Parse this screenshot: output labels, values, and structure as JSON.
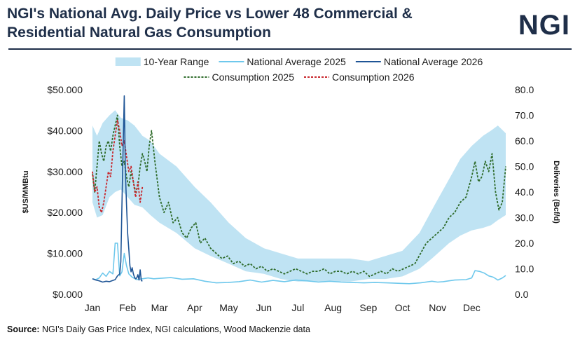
{
  "header": {
    "title_line1": "NGI's National Avg. Daily Price vs Lower 48 Commercial &",
    "title_line2": "Residential Natural Gas Consumption",
    "logo_text": "NGI"
  },
  "footer": {
    "source_label": "Source:",
    "source_text": "NGI's Daily Gas Price Index, NGI calculations, Wood Mackenzie data"
  },
  "colors": {
    "range": "#bfe3f3",
    "avg2025": "#6ec8ec",
    "avg2026": "#1f5596",
    "cons2025": "#2e6b2a",
    "cons2026": "#c8262c",
    "title": "#1f2f49"
  },
  "chart_data": {
    "type": "line",
    "x_unit": "day of year",
    "x_ticks": [
      {
        "label": "Jan",
        "day": 1
      },
      {
        "label": "Feb",
        "day": 32
      },
      {
        "label": "Mar",
        "day": 60
      },
      {
        "label": "Apr",
        "day": 91
      },
      {
        "label": "May",
        "day": 121
      },
      {
        "label": "Jun",
        "day": 152
      },
      {
        "label": "Jul",
        "day": 182
      },
      {
        "label": "Aug",
        "day": 213
      },
      {
        "label": "Sep",
        "day": 244
      },
      {
        "label": "Oct",
        "day": 274
      },
      {
        "label": "Nov",
        "day": 305
      },
      {
        "label": "Dec",
        "day": 335
      }
    ],
    "xlim": [
      1,
      365
    ],
    "y_left": {
      "label": "$US/MMBtu",
      "lim": [
        0,
        50
      ],
      "ticks": [
        0,
        10,
        20,
        30,
        40,
        50
      ],
      "tick_labels": [
        "$0.000",
        "$10.000",
        "$20.000",
        "$30.000",
        "$40.000",
        "$50.000"
      ]
    },
    "y_right": {
      "label": "Deliveries (Bcf/d)",
      "lim": [
        0,
        80
      ],
      "ticks": [
        0,
        10,
        20,
        30,
        40,
        50,
        60,
        70,
        80
      ],
      "tick_labels": [
        "0.0",
        "10.0",
        "20.0",
        "30.0",
        "40.0",
        "50.0",
        "60.0",
        "70.0",
        "80.0"
      ]
    },
    "legend": {
      "placement": "top",
      "items": [
        {
          "label": "10-Year Range",
          "style": "band",
          "color": "#bfe3f3"
        },
        {
          "label": "National Average 2025",
          "style": "line",
          "color": "#6ec8ec"
        },
        {
          "label": "National Average 2026",
          "style": "line",
          "color": "#1f5596"
        },
        {
          "label": "Consumption 2025",
          "style": "dash",
          "color": "#2e6b2a"
        },
        {
          "label": "Consumption 2026",
          "style": "dash",
          "color": "#c8262c"
        }
      ]
    },
    "series": [
      {
        "name": "10-Year Range",
        "axis": "right",
        "kind": "band",
        "x": [
          1,
          5,
          10,
          16,
          21,
          26,
          32,
          38,
          45,
          52,
          60,
          75,
          91,
          105,
          121,
          136,
          152,
          167,
          182,
          198,
          213,
          228,
          244,
          259,
          274,
          289,
          300,
          305,
          315,
          325,
          335,
          345,
          352,
          358,
          365
        ],
        "low": [
          36,
          30,
          31,
          38,
          40,
          41,
          38,
          35,
          34,
          31,
          28,
          24,
          18,
          15,
          12,
          9,
          8,
          6,
          5,
          5,
          5,
          5,
          6,
          6,
          7,
          10,
          14,
          16,
          20,
          23,
          25,
          26,
          27,
          29,
          31
        ],
        "high": [
          66,
          62,
          67,
          70,
          72,
          69,
          68,
          66,
          62,
          60,
          55,
          50,
          42,
          36,
          28,
          22,
          18,
          16,
          14,
          14,
          14,
          14,
          13,
          15,
          17,
          24,
          33,
          37,
          45,
          53,
          58,
          62,
          64,
          66,
          63
        ]
      },
      {
        "name": "National Average 2025",
        "axis": "left",
        "kind": "line",
        "x": [
          1,
          4,
          7,
          10,
          13,
          16,
          19,
          21,
          23,
          25,
          27,
          29,
          31,
          33,
          36,
          40,
          45,
          50,
          55,
          60,
          70,
          80,
          90,
          100,
          110,
          120,
          130,
          140,
          150,
          160,
          170,
          180,
          190,
          200,
          210,
          220,
          230,
          240,
          250,
          260,
          270,
          280,
          290,
          300,
          305,
          310,
          320,
          330,
          335,
          338,
          342,
          346,
          350,
          354,
          358,
          362,
          365
        ],
        "y": [
          3.8,
          3.6,
          4.0,
          5.2,
          4.4,
          5.6,
          5.0,
          12.5,
          12.5,
          4.5,
          5.5,
          10.0,
          7.0,
          5.0,
          4.2,
          3.6,
          3.8,
          4.0,
          3.8,
          3.9,
          4.1,
          3.7,
          3.8,
          3.2,
          2.8,
          2.9,
          3.1,
          3.5,
          3.0,
          3.4,
          3.1,
          3.5,
          3.3,
          3.0,
          3.2,
          3.0,
          2.9,
          2.8,
          2.9,
          2.8,
          2.7,
          2.6,
          2.8,
          3.2,
          3.0,
          3.1,
          3.5,
          3.6,
          4.0,
          5.8,
          5.6,
          5.2,
          4.5,
          4.2,
          3.5,
          4.0,
          4.6
        ]
      },
      {
        "name": "National Average 2026",
        "axis": "left",
        "kind": "line",
        "x": [
          1,
          4,
          7,
          10,
          13,
          16,
          19,
          21,
          23,
          25,
          26,
          27,
          28,
          29,
          30,
          31,
          32,
          33,
          34,
          35,
          36,
          37,
          38,
          39,
          40,
          41,
          42,
          43,
          44,
          45
        ],
        "y": [
          3.8,
          3.5,
          3.3,
          3.0,
          3.2,
          3.1,
          3.4,
          3.6,
          4.5,
          5.0,
          8.0,
          22.0,
          36.0,
          48.5,
          30.0,
          22.0,
          15.0,
          11.0,
          7.0,
          5.5,
          6.5,
          5.0,
          4.2,
          3.8,
          4.0,
          4.8,
          3.5,
          6.0,
          3.4,
          3.2
        ]
      },
      {
        "name": "Consumption 2025",
        "axis": "right",
        "kind": "dash",
        "x": [
          1,
          3,
          5,
          7,
          9,
          11,
          13,
          15,
          17,
          19,
          21,
          23,
          25,
          27,
          29,
          31,
          33,
          35,
          37,
          39,
          41,
          43,
          45,
          47,
          49,
          51,
          53,
          56,
          60,
          64,
          68,
          72,
          76,
          80,
          84,
          88,
          92,
          96,
          100,
          105,
          110,
          115,
          120,
          125,
          130,
          135,
          140,
          145,
          150,
          155,
          160,
          165,
          170,
          175,
          180,
          185,
          190,
          195,
          200,
          205,
          210,
          215,
          220,
          225,
          230,
          235,
          240,
          245,
          250,
          255,
          260,
          265,
          270,
          275,
          280,
          285,
          290,
          295,
          300,
          305,
          310,
          315,
          320,
          325,
          330,
          335,
          338,
          341,
          344,
          347,
          350,
          353,
          356,
          359,
          362,
          365
        ],
        "y": [
          47,
          40,
          50,
          60,
          55,
          52,
          58,
          60,
          56,
          62,
          66,
          70,
          58,
          50,
          52,
          46,
          42,
          48,
          44,
          40,
          42,
          50,
          55,
          52,
          48,
          58,
          64,
          52,
          38,
          32,
          36,
          28,
          30,
          24,
          22,
          26,
          28,
          20,
          22,
          18,
          16,
          14,
          15,
          12,
          13,
          11,
          12,
          10,
          11,
          9,
          10,
          9,
          8,
          9,
          10,
          9,
          8,
          9,
          9,
          10,
          8,
          9,
          9,
          8,
          9,
          8,
          9,
          7,
          8,
          9,
          8,
          10,
          9,
          10,
          11,
          12,
          16,
          20,
          22,
          24,
          26,
          30,
          32,
          36,
          38,
          46,
          52,
          44,
          46,
          52,
          48,
          55,
          40,
          33,
          36,
          50
        ]
      },
      {
        "name": "Consumption 2026",
        "axis": "right",
        "kind": "dash",
        "x": [
          1,
          3,
          5,
          7,
          9,
          11,
          13,
          15,
          17,
          19,
          21,
          23,
          25,
          27,
          29,
          31,
          33,
          35,
          37,
          39,
          41,
          43,
          45
        ],
        "y": [
          48,
          40,
          42,
          34,
          32,
          36,
          42,
          48,
          46,
          56,
          62,
          68,
          64,
          58,
          60,
          54,
          48,
          50,
          44,
          38,
          44,
          36,
          42
        ]
      }
    ]
  }
}
